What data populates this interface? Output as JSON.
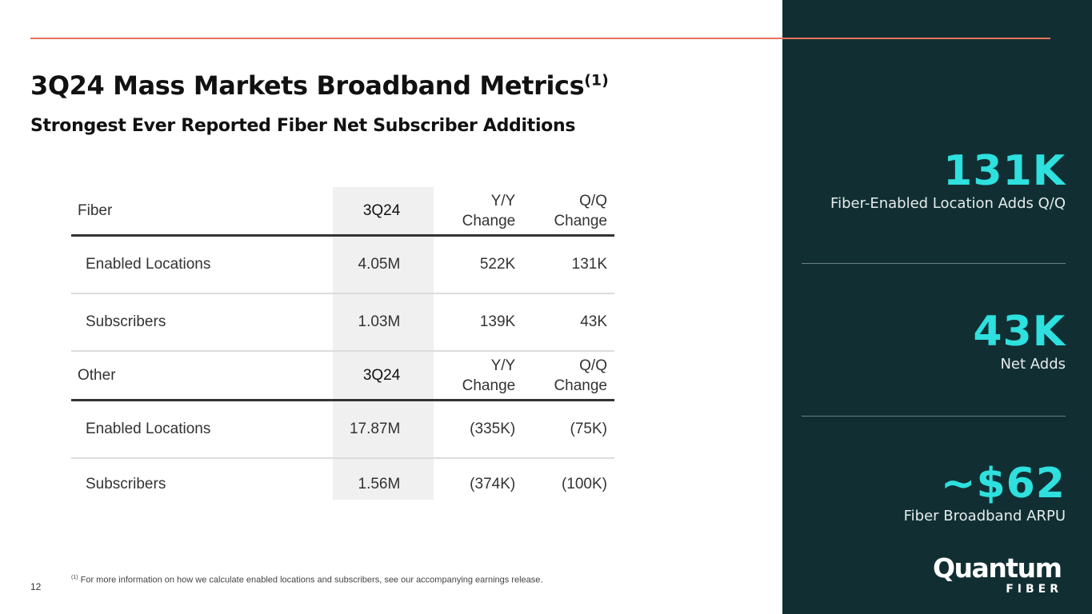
{
  "slide": {
    "title": "3Q24 Mass Markets Broadband Metrics",
    "title_footnote_marker": "(1)",
    "subtitle": "Strongest Ever Reported Fiber Net Subscriber Additions",
    "page_number": "12"
  },
  "table": {
    "fiber": {
      "header": {
        "label": "Fiber",
        "period": "3Q24",
        "yy_line1": "Y/Y",
        "yy_line2": "Change",
        "qq_line1": "Q/Q",
        "qq_line2": "Change"
      },
      "rows": [
        {
          "label": "Enabled Locations",
          "value": "4.05M",
          "yy": "522K",
          "qq": "131K"
        },
        {
          "label": "Subscribers",
          "value": "1.03M",
          "yy": "139K",
          "qq": "43K"
        }
      ]
    },
    "other": {
      "header": {
        "label": "Other",
        "period": "3Q24",
        "yy_line1": "Y/Y",
        "yy_line2": "Change",
        "qq_line1": "Q/Q",
        "qq_line2": "Change"
      },
      "rows": [
        {
          "label": "Enabled Locations",
          "value": "17.87M",
          "yy": "(335K)",
          "qq": "(75K)"
        },
        {
          "label": "Subscribers",
          "value": "1.56M",
          "yy": "(374K)",
          "qq": "(100K)"
        }
      ]
    }
  },
  "footnote": {
    "marker": "(1)",
    "text": " For more information on how we calculate enabled locations and subscribers, see our accompanying earnings release."
  },
  "stats": [
    {
      "value": "131K",
      "label": "Fiber-Enabled Location Adds Q/Q"
    },
    {
      "value": "43K",
      "label": "Net Adds"
    },
    {
      "value": "~$62",
      "label": "Fiber Broadband ARPU"
    }
  ],
  "logo": {
    "word": "Quantum",
    "sub": "FIBER"
  },
  "colors": {
    "accent_line": "#e8735c",
    "panel_bg": "#112f33",
    "stat_value": "#2ee0de"
  }
}
